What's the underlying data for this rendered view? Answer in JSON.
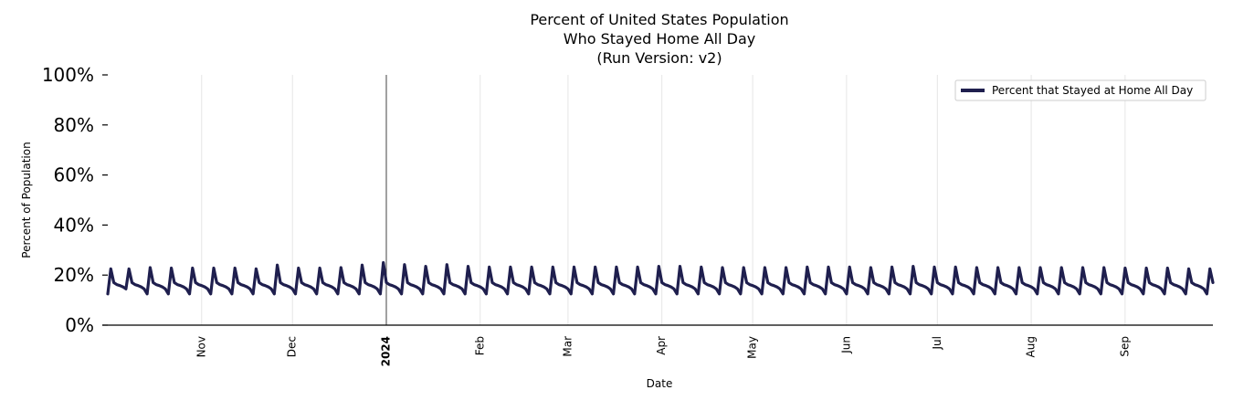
{
  "chart_data": {
    "type": "line",
    "title_lines": [
      "Percent of United States Population",
      "Who Stayed Home All Day",
      "(Run Version: v2)"
    ],
    "xlabel": "Date",
    "ylabel": "Percent of Population",
    "ylim": [
      0,
      100
    ],
    "yticks": [
      "0%",
      "20%",
      "40%",
      "60%",
      "80%",
      "100%"
    ],
    "xlim": [
      "2023-10-01",
      "2024-09-30"
    ],
    "xticks": [
      {
        "date": "2023-11-01",
        "label": "Nov",
        "bold": false
      },
      {
        "date": "2023-12-01",
        "label": "Dec",
        "bold": false
      },
      {
        "date": "2024-01-01",
        "label": "2024",
        "bold": true
      },
      {
        "date": "2024-02-01",
        "label": "Feb",
        "bold": false
      },
      {
        "date": "2024-03-01",
        "label": "Mar",
        "bold": false
      },
      {
        "date": "2024-04-01",
        "label": "Apr",
        "bold": false
      },
      {
        "date": "2024-05-01",
        "label": "May",
        "bold": false
      },
      {
        "date": "2024-06-01",
        "label": "Jun",
        "bold": false
      },
      {
        "date": "2024-07-01",
        "label": "Jul",
        "bold": false
      },
      {
        "date": "2024-08-01",
        "label": "Aug",
        "bold": false
      },
      {
        "date": "2024-09-01",
        "label": "Sep",
        "bold": false
      }
    ],
    "year_marker": "2024-01-01",
    "grid": "vertical",
    "legend_position": "top-right",
    "series": [
      {
        "name": "Percent that Stayed at Home All Day",
        "color": "#1f1f4e",
        "weekly_pattern": [
          22.5,
          17.0,
          16.2,
          15.8,
          15.3,
          14.5,
          12.5
        ],
        "start": "2023-10-01",
        "peak_dates": [
          "2023-10-08",
          "2023-10-15",
          "2023-10-22",
          "2023-10-29",
          "2023-11-05",
          "2023-11-12",
          "2023-11-19",
          "2023-11-26",
          "2023-12-03",
          "2023-12-10",
          "2023-12-17",
          "2023-12-24",
          "2023-12-31",
          "2024-01-07",
          "2024-01-14",
          "2024-01-21",
          "2024-01-28",
          "2024-02-04",
          "2024-02-11",
          "2024-02-18",
          "2024-02-25",
          "2024-03-03",
          "2024-03-10",
          "2024-03-17",
          "2024-03-24",
          "2024-03-31",
          "2024-04-07",
          "2024-04-14",
          "2024-04-21",
          "2024-04-28",
          "2024-05-05",
          "2024-05-12",
          "2024-05-19",
          "2024-05-26",
          "2024-06-02",
          "2024-06-09",
          "2024-06-16",
          "2024-06-23",
          "2024-06-30",
          "2024-07-07",
          "2024-07-14",
          "2024-07-21",
          "2024-07-28",
          "2024-08-04",
          "2024-08-11",
          "2024-08-18",
          "2024-08-25",
          "2024-09-01",
          "2024-09-08",
          "2024-09-15",
          "2024-09-22",
          "2024-09-29"
        ],
        "peak_values": [
          22.5,
          23.0,
          22.8,
          22.8,
          22.8,
          22.8,
          22.5,
          24.0,
          22.8,
          22.8,
          23.0,
          24.0,
          25.0,
          24.2,
          23.5,
          24.2,
          23.5,
          23.2,
          23.2,
          23.2,
          23.2,
          23.2,
          23.2,
          23.2,
          23.2,
          23.5,
          23.5,
          23.2,
          23.0,
          23.0,
          23.0,
          23.0,
          23.2,
          23.2,
          23.2,
          23.0,
          23.2,
          23.5,
          23.2,
          23.2,
          23.0,
          23.0,
          23.0,
          23.0,
          23.0,
          23.0,
          23.0,
          22.8,
          22.8,
          22.8,
          22.5,
          22.5
        ]
      }
    ]
  }
}
